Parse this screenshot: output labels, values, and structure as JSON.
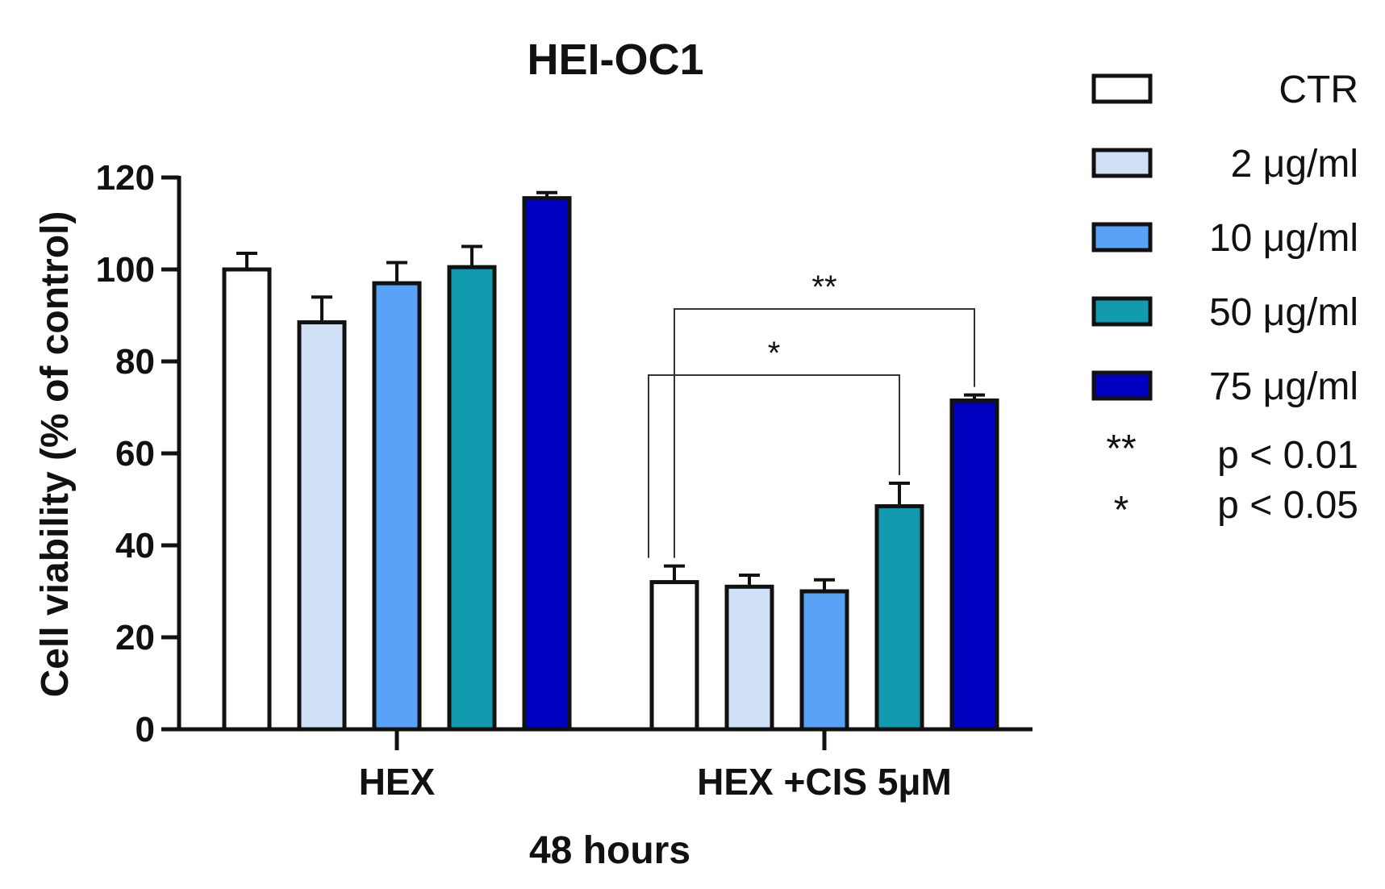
{
  "chart_data": {
    "type": "bar",
    "title": "HEI-OC1",
    "xlabel": "48 hours",
    "ylabel": "Cell viability (% of control)",
    "ylim": [
      0,
      120
    ],
    "yticks": [
      "0",
      "20",
      "40",
      "60",
      "80",
      "100",
      "120"
    ],
    "categories": [
      "HEX",
      "HEX +CIS 5μM"
    ],
    "series": [
      {
        "name": "CTR",
        "color": "#ffffff",
        "values": [
          100,
          32
        ],
        "errors": [
          3.5,
          3.5
        ]
      },
      {
        "name": "2 μg/ml",
        "color": "#cfe0f7",
        "values": [
          88.5,
          31
        ],
        "errors": [
          5.5,
          2.5
        ]
      },
      {
        "name": "10 μg/ml",
        "color": "#5aa2f7",
        "values": [
          97,
          30
        ],
        "errors": [
          4.5,
          2.5
        ]
      },
      {
        "name": "50 μg/ml",
        "color": "#129aae",
        "values": [
          100.5,
          48.5
        ],
        "errors": [
          4.5,
          5
        ]
      },
      {
        "name": "75 μg/ml",
        "color": "#0000c0",
        "values": [
          115.5,
          71.5
        ],
        "errors": [
          1.2,
          1.2
        ]
      }
    ],
    "significance": [
      {
        "group": "HEX +CIS 5μM",
        "from_series": "CTR",
        "to_series": "50 μg/ml",
        "label": "*"
      },
      {
        "group": "HEX +CIS 5μM",
        "from_series": "CTR",
        "to_series": "75 μg/ml",
        "label": "**"
      }
    ],
    "pvalue_legend": [
      {
        "symbol": "**",
        "text": "p < 0.01"
      },
      {
        "symbol": "*",
        "text": "p < 0.05"
      }
    ],
    "legend_position": "right",
    "grid": false
  }
}
